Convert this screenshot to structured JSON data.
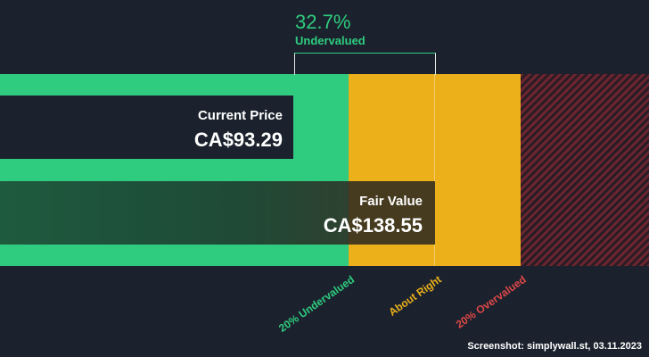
{
  "chart_data": {
    "type": "bar",
    "current_price": {
      "label": "Current Price",
      "value_text": "CA$93.29",
      "value": 93.29
    },
    "fair_value": {
      "label": "Fair Value",
      "value_text": "CA$138.55",
      "value": 138.55
    },
    "discount": {
      "percent_text": "32.7%",
      "status": "Undervalued"
    },
    "zones": [
      {
        "label": "20% Undervalued",
        "color": "#2fcc7f"
      },
      {
        "label": "About Right",
        "color": "#ebb01a"
      },
      {
        "label": "20% Overvalued",
        "color": "#e04848"
      }
    ]
  },
  "footer": "Screenshot: simplywall.st, 03.11.2023"
}
